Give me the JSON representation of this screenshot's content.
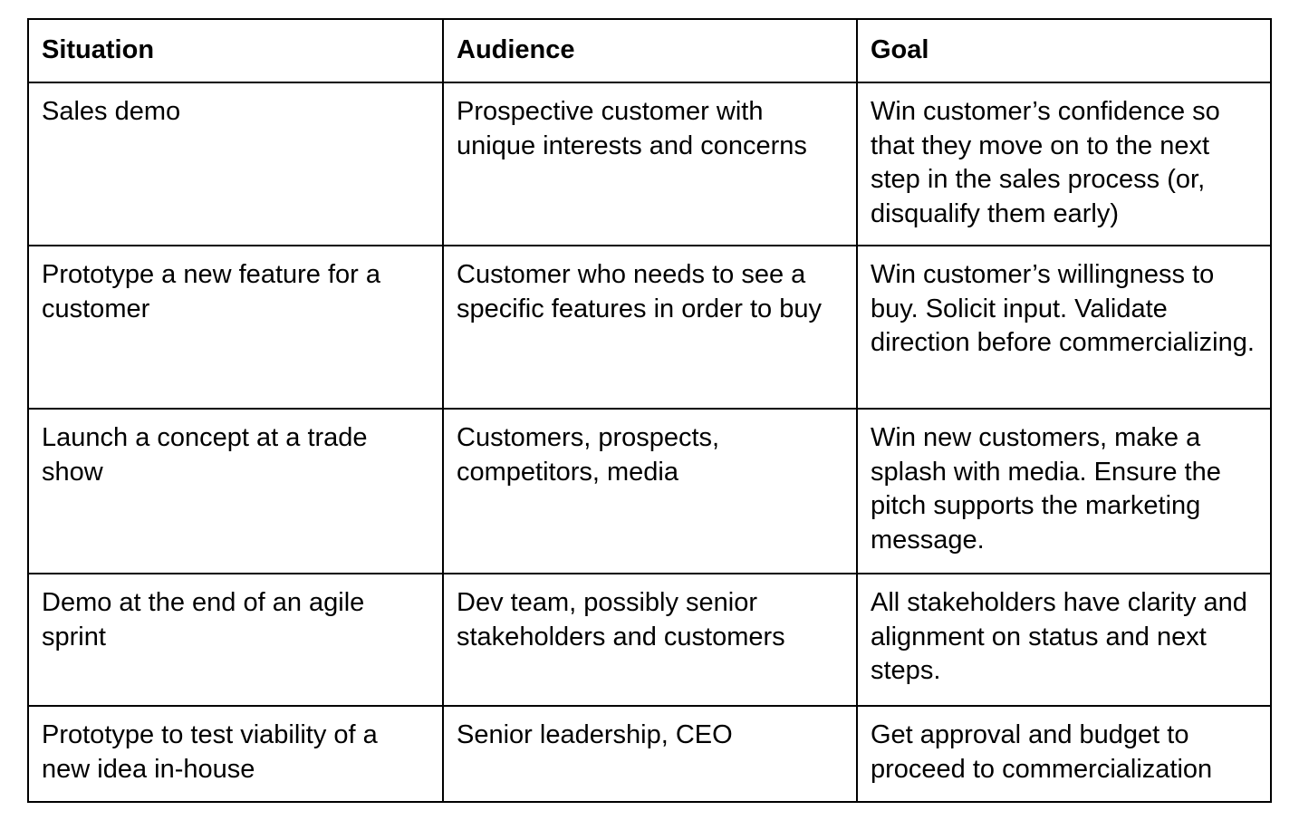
{
  "table": {
    "headers": [
      "Situation",
      "Audience",
      "Goal"
    ],
    "rows": [
      [
        "Sales demo",
        "Prospective customer with unique interests and concerns",
        "Win customer’s confidence so that they move on to the next step in the sales process (or, disqualify them early)"
      ],
      [
        "Prototype a new feature for a customer",
        "Customer who needs to see a specific features in order to buy",
        "Win customer’s willingness to buy. Solicit input. Validate direction before commercializing."
      ],
      [
        "Launch a concept at a trade show",
        "Customers, prospects, competitors, media",
        "Win new customers, make a splash with media. Ensure the pitch supports the marketing message."
      ],
      [
        "Demo at the end of an agile sprint",
        "Dev team, possibly senior stakeholders and customers",
        "All stakeholders have clarity and alignment on status and next steps."
      ],
      [
        "Prototype to test viability of a new idea in-house",
        "Senior leadership, CEO",
        "Get approval and budget to proceed to commercialization"
      ]
    ]
  }
}
